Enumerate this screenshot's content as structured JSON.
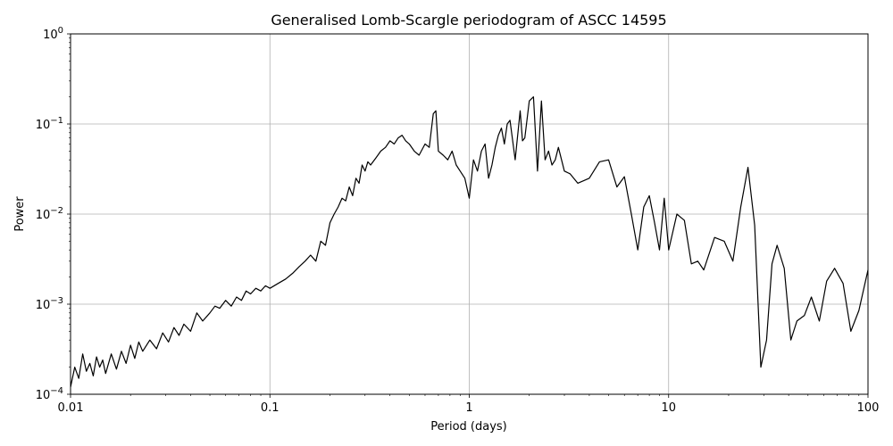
{
  "chart_data": {
    "type": "line",
    "title": "Generalised Lomb-Scargle periodogram of ASCC 14595",
    "xlabel": "Period (days)",
    "ylabel": "Power",
    "x_scale": "log",
    "y_scale": "log",
    "xlim": [
      0.01,
      100
    ],
    "ylim": [
      0.0001,
      1
    ],
    "x_ticks": [
      {
        "value": 0.01,
        "label": "0.01"
      },
      {
        "value": 0.1,
        "label": "0.1"
      },
      {
        "value": 1,
        "label": "1"
      },
      {
        "value": 10,
        "label": "10"
      },
      {
        "value": 100,
        "label": "100"
      }
    ],
    "y_ticks": [
      {
        "value": 0.0001,
        "base": "10",
        "exp": "−4"
      },
      {
        "value": 0.001,
        "base": "10",
        "exp": "−3"
      },
      {
        "value": 0.01,
        "base": "10",
        "exp": "−2"
      },
      {
        "value": 0.1,
        "base": "10",
        "exp": "−1"
      },
      {
        "value": 1,
        "base": "10",
        "exp": "0"
      }
    ],
    "grid": true,
    "line_color": "#000000",
    "series": [
      {
        "values": [
          [
            0.01,
            0.00012
          ],
          [
            0.0105,
            0.0002
          ],
          [
            0.011,
            0.00015
          ],
          [
            0.0115,
            0.00028
          ],
          [
            0.012,
            0.00018
          ],
          [
            0.0125,
            0.00022
          ],
          [
            0.013,
            0.00016
          ],
          [
            0.0135,
            0.00026
          ],
          [
            0.014,
            0.0002
          ],
          [
            0.0145,
            0.00024
          ],
          [
            0.015,
            0.00017
          ],
          [
            0.016,
            0.00028
          ],
          [
            0.017,
            0.00019
          ],
          [
            0.018,
            0.0003
          ],
          [
            0.019,
            0.00022
          ],
          [
            0.02,
            0.00035
          ],
          [
            0.021,
            0.00025
          ],
          [
            0.022,
            0.00038
          ],
          [
            0.023,
            0.0003
          ],
          [
            0.025,
            0.0004
          ],
          [
            0.027,
            0.00032
          ],
          [
            0.029,
            0.00048
          ],
          [
            0.031,
            0.00038
          ],
          [
            0.033,
            0.00055
          ],
          [
            0.035,
            0.00045
          ],
          [
            0.037,
            0.0006
          ],
          [
            0.04,
            0.0005
          ],
          [
            0.043,
            0.0008
          ],
          [
            0.046,
            0.00065
          ],
          [
            0.05,
            0.0008
          ],
          [
            0.053,
            0.00095
          ],
          [
            0.056,
            0.0009
          ],
          [
            0.06,
            0.0011
          ],
          [
            0.064,
            0.00095
          ],
          [
            0.068,
            0.0012
          ],
          [
            0.072,
            0.0011
          ],
          [
            0.076,
            0.0014
          ],
          [
            0.08,
            0.0013
          ],
          [
            0.085,
            0.0015
          ],
          [
            0.09,
            0.0014
          ],
          [
            0.095,
            0.0016
          ],
          [
            0.1,
            0.0015
          ],
          [
            0.11,
            0.0017
          ],
          [
            0.12,
            0.0019
          ],
          [
            0.13,
            0.0022
          ],
          [
            0.14,
            0.0026
          ],
          [
            0.15,
            0.003
          ],
          [
            0.16,
            0.0035
          ],
          [
            0.17,
            0.003
          ],
          [
            0.18,
            0.005
          ],
          [
            0.19,
            0.0045
          ],
          [
            0.2,
            0.008
          ],
          [
            0.21,
            0.01
          ],
          [
            0.22,
            0.012
          ],
          [
            0.23,
            0.015
          ],
          [
            0.24,
            0.014
          ],
          [
            0.25,
            0.02
          ],
          [
            0.26,
            0.016
          ],
          [
            0.27,
            0.025
          ],
          [
            0.28,
            0.022
          ],
          [
            0.29,
            0.035
          ],
          [
            0.3,
            0.03
          ],
          [
            0.31,
            0.038
          ],
          [
            0.32,
            0.035
          ],
          [
            0.34,
            0.042
          ],
          [
            0.36,
            0.05
          ],
          [
            0.38,
            0.055
          ],
          [
            0.4,
            0.065
          ],
          [
            0.42,
            0.06
          ],
          [
            0.44,
            0.07
          ],
          [
            0.46,
            0.075
          ],
          [
            0.48,
            0.065
          ],
          [
            0.5,
            0.06
          ],
          [
            0.53,
            0.05
          ],
          [
            0.56,
            0.045
          ],
          [
            0.6,
            0.06
          ],
          [
            0.63,
            0.055
          ],
          [
            0.66,
            0.13
          ],
          [
            0.68,
            0.14
          ],
          [
            0.7,
            0.05
          ],
          [
            0.74,
            0.045
          ],
          [
            0.78,
            0.04
          ],
          [
            0.82,
            0.05
          ],
          [
            0.86,
            0.035
          ],
          [
            0.9,
            0.03
          ],
          [
            0.95,
            0.025
          ],
          [
            1.0,
            0.015
          ],
          [
            1.05,
            0.04
          ],
          [
            1.1,
            0.03
          ],
          [
            1.15,
            0.05
          ],
          [
            1.2,
            0.06
          ],
          [
            1.25,
            0.025
          ],
          [
            1.3,
            0.035
          ],
          [
            1.35,
            0.055
          ],
          [
            1.4,
            0.075
          ],
          [
            1.45,
            0.09
          ],
          [
            1.5,
            0.06
          ],
          [
            1.55,
            0.1
          ],
          [
            1.6,
            0.11
          ],
          [
            1.7,
            0.04
          ],
          [
            1.8,
            0.14
          ],
          [
            1.85,
            0.065
          ],
          [
            1.9,
            0.07
          ],
          [
            2.0,
            0.18
          ],
          [
            2.1,
            0.2
          ],
          [
            2.2,
            0.03
          ],
          [
            2.3,
            0.18
          ],
          [
            2.4,
            0.04
          ],
          [
            2.5,
            0.05
          ],
          [
            2.6,
            0.035
          ],
          [
            2.7,
            0.04
          ],
          [
            2.8,
            0.055
          ],
          [
            3.0,
            0.03
          ],
          [
            3.2,
            0.028
          ],
          [
            3.5,
            0.022
          ],
          [
            4.0,
            0.025
          ],
          [
            4.5,
            0.038
          ],
          [
            5.0,
            0.04
          ],
          [
            5.5,
            0.02
          ],
          [
            6.0,
            0.026
          ],
          [
            6.5,
            0.01
          ],
          [
            7.0,
            0.004
          ],
          [
            7.5,
            0.012
          ],
          [
            8.0,
            0.016
          ],
          [
            8.5,
            0.008
          ],
          [
            9.0,
            0.004
          ],
          [
            9.5,
            0.015
          ],
          [
            10.0,
            0.004
          ],
          [
            11.0,
            0.01
          ],
          [
            12.0,
            0.0085
          ],
          [
            13.0,
            0.0028
          ],
          [
            14.0,
            0.003
          ],
          [
            15.0,
            0.0024
          ],
          [
            17.0,
            0.0055
          ],
          [
            19.0,
            0.005
          ],
          [
            21.0,
            0.003
          ],
          [
            23.0,
            0.012
          ],
          [
            25.0,
            0.033
          ],
          [
            27.0,
            0.0075
          ],
          [
            29.0,
            0.0002
          ],
          [
            31.0,
            0.0004
          ],
          [
            33.0,
            0.0028
          ],
          [
            35.0,
            0.0045
          ],
          [
            38.0,
            0.0025
          ],
          [
            41.0,
            0.0004
          ],
          [
            44.0,
            0.00065
          ],
          [
            48.0,
            0.00075
          ],
          [
            52.0,
            0.0012
          ],
          [
            57.0,
            0.00065
          ],
          [
            62.0,
            0.0018
          ],
          [
            68.0,
            0.0025
          ],
          [
            75.0,
            0.0017
          ],
          [
            82.0,
            0.0005
          ],
          [
            90.0,
            0.00085
          ],
          [
            100.0,
            0.0024
          ]
        ]
      }
    ]
  }
}
